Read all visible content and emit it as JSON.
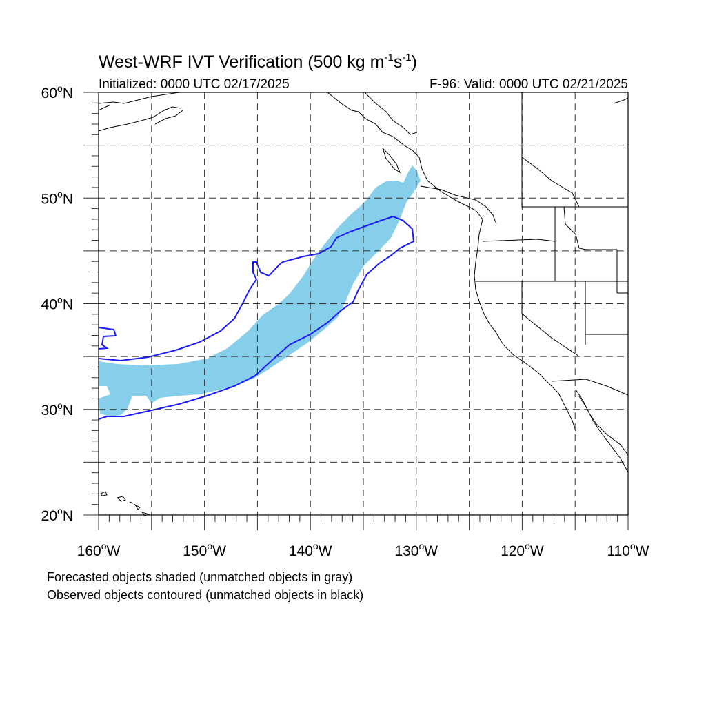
{
  "title": {
    "main": "West-WRF IVT Verification (500 kg m",
    "sup1": "-1",
    "mid": "s",
    "sup2": "-1",
    "end": ")"
  },
  "subtitle": {
    "left": "Initialized: 0000 UTC 02/17/2025",
    "right": "F-96: Valid: 0000 UTC 02/21/2025"
  },
  "axes": {
    "lon_range": [
      -160,
      -110
    ],
    "lat_range": [
      20,
      60
    ],
    "lon_ticks": [
      {
        "value": -160,
        "label": "160",
        "deg": "o",
        "hem": "W"
      },
      {
        "value": -150,
        "label": "150",
        "deg": "o",
        "hem": "W"
      },
      {
        "value": -140,
        "label": "140",
        "deg": "o",
        "hem": "W"
      },
      {
        "value": -130,
        "label": "130",
        "deg": "o",
        "hem": "W"
      },
      {
        "value": -120,
        "label": "120",
        "deg": "o",
        "hem": "W"
      },
      {
        "value": -110,
        "label": "110",
        "deg": "o",
        "hem": "W"
      }
    ],
    "lat_ticks": [
      {
        "value": 60,
        "label": "60",
        "deg": "o",
        "hem": "N"
      },
      {
        "value": 50,
        "label": "50",
        "deg": "o",
        "hem": "N"
      },
      {
        "value": 40,
        "label": "40",
        "deg": "o",
        "hem": "N"
      },
      {
        "value": 30,
        "label": "30",
        "deg": "o",
        "hem": "N"
      },
      {
        "value": 20,
        "label": "20",
        "deg": "o",
        "hem": "N"
      }
    ],
    "grid_spacing_deg": 5,
    "grid": true
  },
  "footer": {
    "line1": "Forecasted objects shaded (unmatched objects in gray)",
    "line2": "Observed objects contoured (unmatched objects in black)"
  },
  "colors": {
    "forecast_fill": "#87ceeb",
    "observed_contour": "#1a1aff",
    "coast": "#000000",
    "grid": "#333333"
  }
}
